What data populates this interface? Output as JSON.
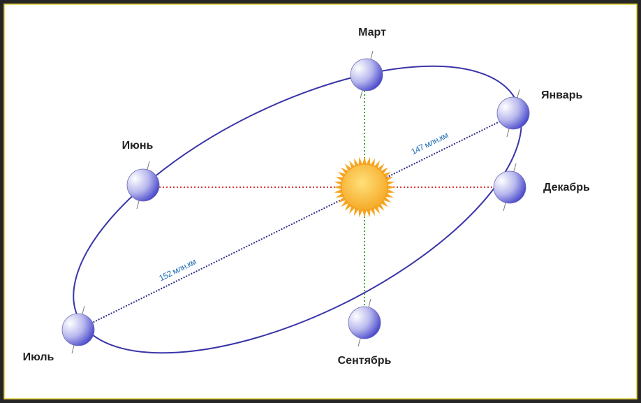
{
  "planets": [
    {
      "label": "Март"
    },
    {
      "label": "Январь"
    },
    {
      "label": "Июнь"
    },
    {
      "label": "Декабрь"
    },
    {
      "label": "Июль"
    },
    {
      "label": "Сентябрь"
    }
  ],
  "distances": [
    "147 млн.км",
    "152 млн.км"
  ]
}
